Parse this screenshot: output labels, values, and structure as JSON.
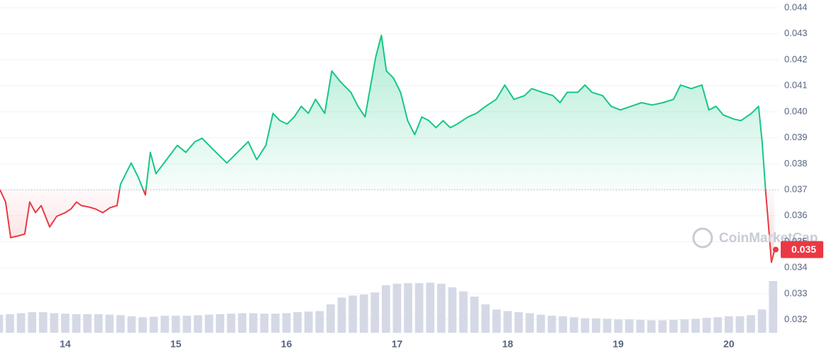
{
  "chart_data": {
    "type": "line",
    "x": [
      13.41,
      13.461,
      13.506,
      13.57,
      13.634,
      13.679,
      13.731,
      13.782,
      13.859,
      13.923,
      14.0,
      14.051,
      14.102,
      14.147,
      14.211,
      14.275,
      14.339,
      14.404,
      14.468,
      14.5,
      14.596,
      14.66,
      14.724,
      14.769,
      14.82,
      14.916,
      15.013,
      15.09,
      15.173,
      15.237,
      15.333,
      15.461,
      15.557,
      15.654,
      15.731,
      15.814,
      15.878,
      15.942,
      16.006,
      16.07,
      16.134,
      16.198,
      16.263,
      16.346,
      16.41,
      16.487,
      16.583,
      16.647,
      16.711,
      16.756,
      16.808,
      16.859,
      16.904,
      16.968,
      17.032,
      17.096,
      17.16,
      17.224,
      17.288,
      17.352,
      17.416,
      17.481,
      17.545,
      17.641,
      17.718,
      17.801,
      17.897,
      17.974,
      18.057,
      18.154,
      18.218,
      18.314,
      18.41,
      18.474,
      18.538,
      18.634,
      18.699,
      18.763,
      18.859,
      18.936,
      19.019,
      19.115,
      19.211,
      19.307,
      19.404,
      19.5,
      19.564,
      19.66,
      19.756,
      19.82,
      19.885,
      19.949,
      20.045,
      20.109,
      20.205,
      20.269,
      20.301,
      20.333,
      20.365,
      20.385,
      20.41
    ],
    "values": [
      0.037,
      0.03653,
      0.03516,
      0.03522,
      0.0353,
      0.03653,
      0.03612,
      0.03639,
      0.03557,
      0.03598,
      0.03612,
      0.03626,
      0.03653,
      0.03639,
      0.03634,
      0.03626,
      0.03612,
      0.03631,
      0.03639,
      0.03721,
      0.03803,
      0.03748,
      0.0368,
      0.03844,
      0.03762,
      0.03816,
      0.03871,
      0.03844,
      0.03885,
      0.03898,
      0.03857,
      0.03803,
      0.03844,
      0.03885,
      0.03816,
      0.03871,
      0.03994,
      0.03966,
      0.03953,
      0.0398,
      0.04021,
      0.03994,
      0.04048,
      0.03994,
      0.04157,
      0.04116,
      0.04075,
      0.04021,
      0.0398,
      0.04089,
      0.04212,
      0.04294,
      0.04157,
      0.0413,
      0.04075,
      0.03966,
      0.03912,
      0.0398,
      0.03966,
      0.03939,
      0.03966,
      0.03939,
      0.03953,
      0.0398,
      0.03994,
      0.04021,
      0.04048,
      0.04103,
      0.04048,
      0.04062,
      0.04089,
      0.04075,
      0.04062,
      0.04035,
      0.04075,
      0.04075,
      0.04103,
      0.04075,
      0.04062,
      0.04021,
      0.04007,
      0.04021,
      0.04035,
      0.04026,
      0.04035,
      0.04048,
      0.04103,
      0.04089,
      0.04103,
      0.04007,
      0.04021,
      0.03988,
      0.03972,
      0.03966,
      0.03994,
      0.04021,
      0.03885,
      0.03694,
      0.0353,
      0.03421,
      0.03462
    ],
    "reference_line": 0.037,
    "up_color": "#16c784",
    "down_color": "#ea3943",
    "volume": {
      "color": "#d5d9e6",
      "x": [
        13.4,
        13.5,
        13.6,
        13.7,
        13.8,
        13.9,
        14.0,
        14.1,
        14.2,
        14.3,
        14.4,
        14.5,
        14.6,
        14.7,
        14.8,
        14.9,
        15.0,
        15.1,
        15.2,
        15.3,
        15.4,
        15.5,
        15.6,
        15.7,
        15.8,
        15.9,
        16.0,
        16.1,
        16.2,
        16.3,
        16.4,
        16.5,
        16.6,
        16.7,
        16.8,
        16.9,
        17.0,
        17.1,
        17.2,
        17.3,
        17.4,
        17.5,
        17.6,
        17.7,
        17.8,
        17.9,
        18.0,
        18.1,
        18.2,
        18.3,
        18.4,
        18.5,
        18.6,
        18.7,
        18.8,
        18.9,
        19.0,
        19.1,
        19.2,
        19.3,
        19.4,
        19.5,
        19.6,
        19.7,
        19.8,
        19.9,
        20.0,
        20.1,
        20.2,
        20.3,
        20.4
      ],
      "values": [
        35,
        36,
        38,
        40,
        40,
        38,
        37,
        36,
        36,
        36,
        35,
        34,
        32,
        30,
        31,
        33,
        33,
        33,
        34,
        35,
        36,
        37,
        38,
        38,
        37,
        37,
        38,
        40,
        41,
        42,
        55,
        68,
        72,
        74,
        78,
        92,
        95,
        96,
        96,
        97,
        95,
        88,
        80,
        70,
        55,
        45,
        42,
        40,
        38,
        35,
        33,
        32,
        30,
        28,
        28,
        27,
        26,
        26,
        25,
        24,
        24,
        25,
        26,
        27,
        29,
        30,
        32,
        32,
        34,
        45,
        100
      ]
    },
    "current_price": {
      "value": 0.0347,
      "label": "0.035"
    },
    "watermark": "CoinMarketCap",
    "xlim": [
      13.41,
      20.45
    ],
    "xticks": [
      14,
      15,
      16,
      17,
      18,
      19,
      20
    ],
    "ylim": [
      0.0315,
      0.0443
    ],
    "yticks": [
      0.044,
      0.043,
      0.042,
      0.041,
      {
        "value": 0.04,
        "label": "0.040"
      },
      0.039,
      0.038,
      0.037,
      0.036,
      0.035,
      0.034,
      0.033,
      0.032
    ],
    "grid": true
  }
}
